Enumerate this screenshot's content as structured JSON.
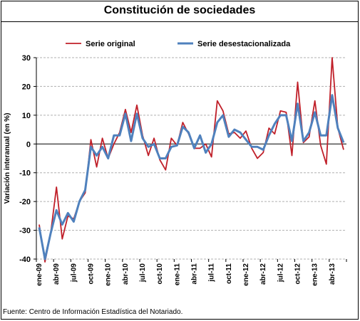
{
  "title": "Constitución de sociedades",
  "source": "Fuente: Centro de Información Estadística del Notariado.",
  "colors": {
    "original": "#c0202a",
    "desestacionalizada": "#4f81bd",
    "grid": "#b0b0b0",
    "axis": "#000000"
  },
  "chart_data": {
    "type": "line",
    "title": "Constitución de sociedades",
    "ylabel": "Variación interanual (en %)",
    "xlabel": "",
    "ylim": [
      -40,
      30
    ],
    "yticks": [
      -40,
      -30,
      -20,
      -10,
      0,
      10,
      20,
      30
    ],
    "grid": "horizontal dashed",
    "legend_position": "top",
    "x": [
      "ene-09",
      "feb-09",
      "mar-09",
      "abr-09",
      "may-09",
      "jun-09",
      "jul-09",
      "ago-09",
      "sep-09",
      "oct-09",
      "nov-09",
      "dic-09",
      "ene-10",
      "feb-10",
      "mar-10",
      "abr-10",
      "may-10",
      "jun-10",
      "jul-10",
      "ago-10",
      "sep-10",
      "oct-10",
      "nov-10",
      "dic-10",
      "ene-11",
      "feb-11",
      "mar-11",
      "abr-11",
      "may-11",
      "jun-11",
      "jul-11",
      "ago-11",
      "sep-11",
      "oct-11",
      "nov-11",
      "dic-11",
      "ene-12",
      "feb-12",
      "mar-12",
      "abr-12",
      "may-12",
      "jun-12",
      "jul-12",
      "ago-12",
      "sep-12",
      "oct-12",
      "nov-12",
      "dic-12",
      "ene-13",
      "feb-13",
      "mar-13",
      "abr-13",
      "may-13",
      "jun-13"
    ],
    "tick_labels": [
      "ene-09",
      "abr-09",
      "jul-09",
      "oct-09",
      "ene-10",
      "abr-10",
      "jul-10",
      "oct-10",
      "ene-11",
      "abr-11",
      "jul-11",
      "oct-11",
      "ene-12",
      "abr-12",
      "jul-12",
      "oct-12",
      "ene-13",
      "abr-13"
    ],
    "series": [
      {
        "name": "Serie original",
        "color": "#c0202a",
        "values": [
          -28,
          -41,
          -31,
          -15,
          -33,
          -25,
          -26,
          -20,
          -17,
          1.5,
          -8,
          2,
          -5,
          0,
          4,
          12,
          4,
          13.5,
          3,
          -4,
          2,
          -5.5,
          -9,
          2,
          -0.5,
          7.5,
          3.5,
          -1.5,
          -1.5,
          0,
          -4.5,
          15,
          11.5,
          3.5,
          4,
          2,
          4.5,
          -1.5,
          -5,
          -3,
          5.5,
          3.5,
          11.5,
          11,
          -4,
          21.5,
          0.5,
          2.5,
          15,
          -0.5,
          -7,
          30,
          5.5,
          -2
        ]
      },
      {
        "name": "Serie desestacionalizada",
        "color": "#4f81bd",
        "values": [
          -29,
          -40,
          -31,
          -23,
          -28,
          -24,
          -27,
          -20,
          -16,
          -1,
          -4,
          -1,
          -5,
          3,
          3,
          10.5,
          1,
          10.5,
          2,
          -1,
          0,
          -5,
          -5,
          -1,
          -0.5,
          6,
          4,
          -1.5,
          3,
          -3,
          0,
          7.5,
          10,
          2.5,
          5,
          4,
          1.5,
          -1,
          -1,
          -2,
          3,
          7,
          10,
          10,
          1,
          14,
          1,
          4,
          11,
          3,
          3,
          17,
          5.5,
          0.5
        ]
      }
    ]
  }
}
